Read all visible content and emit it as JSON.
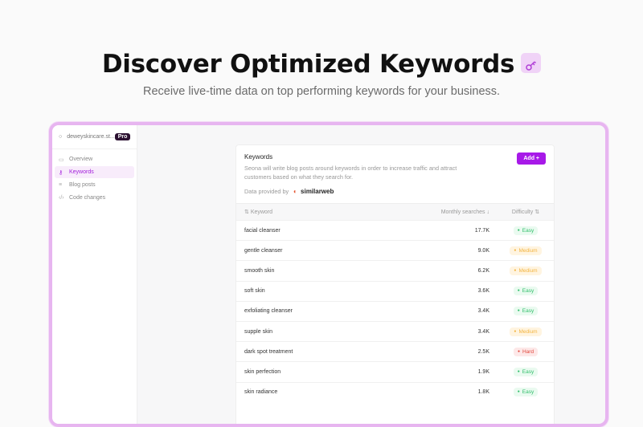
{
  "hero": {
    "title": "Discover Optimized Keywords",
    "subtitle": "Receive live-time data on top performing keywords for your business.",
    "icon": "key-icon"
  },
  "sidebar": {
    "workspace": "deweyskincare.st...",
    "plan": "Pro",
    "items": [
      {
        "label": "Overview",
        "icon": "calendar-icon",
        "active": false
      },
      {
        "label": "Keywords",
        "icon": "key-icon",
        "active": true
      },
      {
        "label": "Blog posts",
        "icon": "lines-icon",
        "active": false
      },
      {
        "label": "Code changes",
        "icon": "code-icon",
        "active": false
      }
    ]
  },
  "card": {
    "title": "Keywords",
    "description": "Seona will write blog posts around keywords in order to increase traffic and attract customers based on what they search for.",
    "provided_by": "Data provided by",
    "provider": "similarweb",
    "add_label": "Add +"
  },
  "table": {
    "columns": [
      "Keyword",
      "Monthly searches",
      "Difficulty"
    ],
    "rows": [
      {
        "keyword": "facial cleanser",
        "searches": "17.7K",
        "difficulty": "Easy"
      },
      {
        "keyword": "gentle cleanser",
        "searches": "9.0K",
        "difficulty": "Medium"
      },
      {
        "keyword": "smooth skin",
        "searches": "6.2K",
        "difficulty": "Medium"
      },
      {
        "keyword": "soft skin",
        "searches": "3.6K",
        "difficulty": "Easy"
      },
      {
        "keyword": "exfoliating cleanser",
        "searches": "3.4K",
        "difficulty": "Easy"
      },
      {
        "keyword": "supple skin",
        "searches": "3.4K",
        "difficulty": "Medium"
      },
      {
        "keyword": "dark spot treatment",
        "searches": "2.5K",
        "difficulty": "Hard"
      },
      {
        "keyword": "skin perfection",
        "searches": "1.9K",
        "difficulty": "Easy"
      },
      {
        "keyword": "skin radiance",
        "searches": "1.8K",
        "difficulty": "Easy"
      }
    ]
  },
  "colors": {
    "accent": "#a719e8",
    "easy": "#2fbf6a",
    "medium": "#f3b440",
    "hard": "#e2483d"
  }
}
